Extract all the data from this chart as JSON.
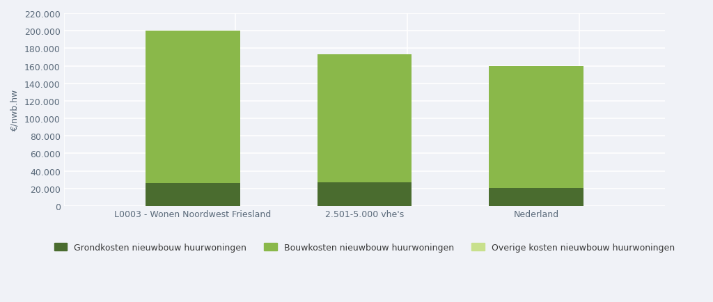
{
  "categories": [
    "L0003 - Wonen Noordwest Friesland",
    "2.501-5.000 vhe's",
    "Nederland"
  ],
  "grondkosten": [
    26000,
    27000,
    21000
  ],
  "totals": [
    200000,
    173000,
    160000
  ],
  "overige_kosten": [
    0,
    0,
    0
  ],
  "color_grond": "#4a6c2f",
  "color_bouw": "#8ab84a",
  "color_overig": "#c8e08c",
  "ylabel": "€/nwb.hw",
  "ylim_max": 220000,
  "ytick_step": 20000,
  "background_color": "#f0f2f7",
  "plot_bg": "#f0f2f7",
  "grid_color": "#ffffff",
  "bar_width": 0.55,
  "legend_labels": [
    "Grondkosten nieuwbouw huurwoningen",
    "Bouwkosten nieuwbouw huurwoningen",
    "Overige kosten nieuwbouw huurwoningen"
  ]
}
